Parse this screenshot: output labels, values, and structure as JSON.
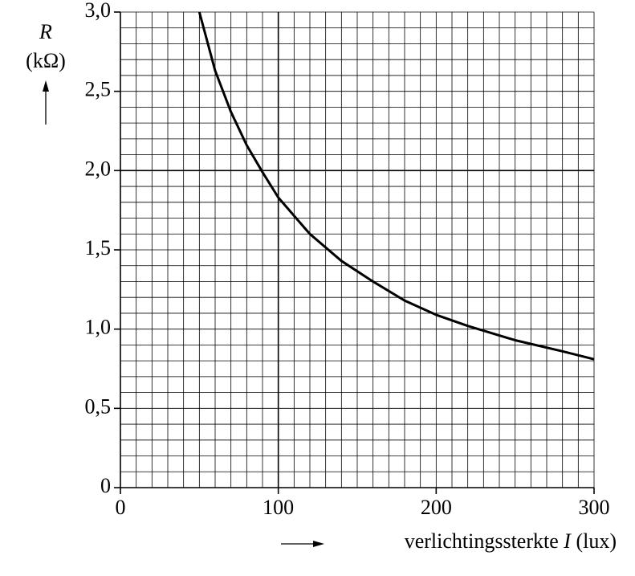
{
  "chart_data": {
    "type": "line",
    "ylabel": "R",
    "yunit": "(kΩ)",
    "xlabel": "verlichtingssterkte",
    "xlabel_symbol": "I",
    "xlabel_unit": "(lux)",
    "x": [
      50,
      60,
      70,
      80,
      90,
      100,
      120,
      140,
      160,
      180,
      200,
      220,
      250,
      280,
      300
    ],
    "series": [
      {
        "color": "#000000",
        "values": [
          3.0,
          2.63,
          2.37,
          2.16,
          1.99,
          1.83,
          1.6,
          1.43,
          1.3,
          1.18,
          1.09,
          1.02,
          0.93,
          0.86,
          0.81
        ]
      }
    ],
    "xlim": [
      0,
      300
    ],
    "ylim": [
      0,
      3
    ],
    "xticks": [
      0,
      100,
      200,
      300
    ],
    "yticks": [
      0,
      {
        "value": 0.5,
        "label": "0,5"
      },
      {
        "value": 1,
        "label": "1,0"
      },
      {
        "value": 1.5,
        "label": "1,5"
      },
      {
        "value": 2,
        "label": "2,0"
      },
      {
        "value": 2.5,
        "label": "2,5"
      },
      {
        "value": 3,
        "label": "3,0"
      }
    ],
    "grid": true,
    "minor_xstep": 10,
    "minor_ystep": 0.1,
    "xmajor": [
      100
    ],
    "ymajor": [
      2
    ]
  }
}
